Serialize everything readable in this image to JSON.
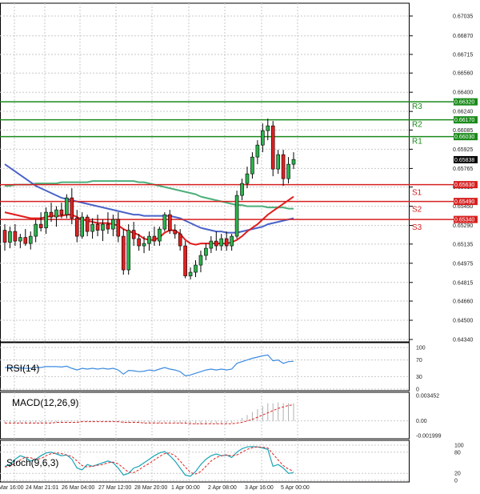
{
  "chart_data": {
    "type": "candlestick",
    "symbol_note": "",
    "x_labels": [
      "Mar 16:00",
      "24 Mar 21:01",
      "26 Mar 04:00",
      "27 Mar 12:00",
      "28 Mar 20:00",
      "1 Apr 00:00",
      "2 Apr 08:00",
      "3 Apr 16:00",
      "5 Apr 00:00"
    ],
    "price_axis": {
      "min": 0.6428,
      "max": 0.671,
      "ticks": [
        "0.67035",
        "0.66870",
        "0.66715",
        "0.66560",
        "0.66400",
        "0.66240",
        "0.66085",
        "0.65925",
        "0.65765",
        "0.65610",
        "0.65450",
        "0.65290",
        "0.65135",
        "0.64975",
        "0.64815",
        "0.64660",
        "0.64500",
        "0.64340"
      ]
    },
    "current_price": "0.65838",
    "levels": [
      {
        "name": "R3",
        "value": 0.6632,
        "label": "0.66320",
        "color": "#1a8a1a"
      },
      {
        "name": "R2",
        "value": 0.6617,
        "label": "0.66170",
        "color": "#1a8a1a"
      },
      {
        "name": "R1",
        "value": 0.6603,
        "label": "0.66030",
        "color": "#1a8a1a"
      },
      {
        "name": "S1",
        "value": 0.6563,
        "label": "0.65630",
        "color": "#d62020"
      },
      {
        "name": "S2",
        "value": 0.6549,
        "label": "0.65490",
        "color": "#d62020"
      },
      {
        "name": "S3",
        "value": 0.6534,
        "label": "0.65340",
        "color": "#d62020"
      }
    ],
    "candles": [
      [
        0.6525,
        0.653,
        0.6508,
        0.6515
      ],
      [
        0.6515,
        0.6528,
        0.651,
        0.6524
      ],
      [
        0.6524,
        0.653,
        0.6512,
        0.6516
      ],
      [
        0.6516,
        0.6522,
        0.651,
        0.6519
      ],
      [
        0.6519,
        0.6526,
        0.6512,
        0.6514
      ],
      [
        0.6514,
        0.6524,
        0.6509,
        0.652
      ],
      [
        0.652,
        0.6534,
        0.6515,
        0.653
      ],
      [
        0.653,
        0.654,
        0.6524,
        0.6527
      ],
      [
        0.6527,
        0.6544,
        0.6522,
        0.654
      ],
      [
        0.654,
        0.6548,
        0.6532,
        0.6536
      ],
      [
        0.6536,
        0.6545,
        0.6528,
        0.6542
      ],
      [
        0.6542,
        0.6548,
        0.6535,
        0.6538
      ],
      [
        0.6538,
        0.6555,
        0.6535,
        0.6552
      ],
      [
        0.6552,
        0.656,
        0.653,
        0.6535
      ],
      [
        0.6535,
        0.6542,
        0.6515,
        0.652
      ],
      [
        0.652,
        0.654,
        0.6518,
        0.6536
      ],
      [
        0.6536,
        0.6538,
        0.652,
        0.6524
      ],
      [
        0.6524,
        0.6535,
        0.6518,
        0.653
      ],
      [
        0.653,
        0.6538,
        0.652,
        0.6525
      ],
      [
        0.6525,
        0.6534,
        0.6516,
        0.653
      ],
      [
        0.653,
        0.654,
        0.6522,
        0.6526
      ],
      [
        0.6526,
        0.6538,
        0.652,
        0.6534
      ],
      [
        0.6534,
        0.654,
        0.6515,
        0.652
      ],
      [
        0.652,
        0.6526,
        0.6488,
        0.6492
      ],
      [
        0.6492,
        0.653,
        0.6488,
        0.6525
      ],
      [
        0.6525,
        0.6532,
        0.6512,
        0.6518
      ],
      [
        0.6518,
        0.6522,
        0.6508,
        0.6512
      ],
      [
        0.6512,
        0.652,
        0.6506,
        0.6514
      ],
      [
        0.6514,
        0.6524,
        0.6508,
        0.652
      ],
      [
        0.652,
        0.6528,
        0.6512,
        0.6516
      ],
      [
        0.6516,
        0.6528,
        0.6512,
        0.6526
      ],
      [
        0.6526,
        0.654,
        0.6524,
        0.6538
      ],
      [
        0.6538,
        0.6542,
        0.6522,
        0.6525
      ],
      [
        0.6525,
        0.653,
        0.6518,
        0.6522
      ],
      [
        0.6522,
        0.6526,
        0.6508,
        0.6512
      ],
      [
        0.6512,
        0.6516,
        0.6485,
        0.6487
      ],
      [
        0.6487,
        0.6494,
        0.6484,
        0.649
      ],
      [
        0.649,
        0.65,
        0.6486,
        0.6496
      ],
      [
        0.6496,
        0.6508,
        0.649,
        0.6504
      ],
      [
        0.6504,
        0.6514,
        0.65,
        0.651
      ],
      [
        0.651,
        0.652,
        0.6506,
        0.6516
      ],
      [
        0.6516,
        0.6524,
        0.6508,
        0.6512
      ],
      [
        0.6512,
        0.6522,
        0.6508,
        0.6518
      ],
      [
        0.6518,
        0.6524,
        0.6508,
        0.6512
      ],
      [
        0.6512,
        0.6522,
        0.6508,
        0.652
      ],
      [
        0.652,
        0.6558,
        0.6518,
        0.6554
      ],
      [
        0.6554,
        0.6568,
        0.655,
        0.6564
      ],
      [
        0.6564,
        0.6578,
        0.656,
        0.6572
      ],
      [
        0.6572,
        0.659,
        0.6568,
        0.6586
      ],
      [
        0.6586,
        0.66,
        0.658,
        0.6596
      ],
      [
        0.6596,
        0.6614,
        0.659,
        0.6608
      ],
      [
        0.6608,
        0.6618,
        0.66,
        0.6612
      ],
      [
        0.6612,
        0.6616,
        0.657,
        0.6576
      ],
      [
        0.6576,
        0.6592,
        0.6572,
        0.6588
      ],
      [
        0.6588,
        0.6592,
        0.6562,
        0.6568
      ],
      [
        0.6568,
        0.6586,
        0.6564,
        0.658
      ],
      [
        0.658,
        0.659,
        0.6576,
        0.6584
      ]
    ],
    "ma_fast_red": [
      0.654,
      0.6539,
      0.6538,
      0.6537,
      0.6536,
      0.6535,
      0.6535,
      0.6535,
      0.6536,
      0.6537,
      0.6537,
      0.6537,
      0.6538,
      0.6538,
      0.6536,
      0.6534,
      0.6533,
      0.6532,
      0.6531,
      0.6531,
      0.6531,
      0.653,
      0.6529,
      0.6526,
      0.6524,
      0.6523,
      0.6521,
      0.6518,
      0.6517,
      0.6517,
      0.6519,
      0.6523,
      0.6525,
      0.6525,
      0.6522,
      0.6517,
      0.6514,
      0.6513,
      0.6514,
      0.6514,
      0.6514,
      0.6514,
      0.6514,
      0.6514,
      0.6515,
      0.6517,
      0.652,
      0.6524,
      0.6527,
      0.653,
      0.6534,
      0.6538,
      0.6541,
      0.6544,
      0.6547,
      0.655,
      0.6553
    ],
    "ma_mid_blue": [
      0.658,
      0.6577,
      0.6574,
      0.6571,
      0.6568,
      0.6565,
      0.6562,
      0.656,
      0.6558,
      0.6556,
      0.6554,
      0.6552,
      0.6551,
      0.655,
      0.6549,
      0.6548,
      0.6547,
      0.6546,
      0.6545,
      0.6544,
      0.6543,
      0.6542,
      0.6541,
      0.654,
      0.6539,
      0.6538,
      0.6538,
      0.6537,
      0.6537,
      0.6537,
      0.6537,
      0.6537,
      0.6537,
      0.6536,
      0.6535,
      0.6533,
      0.6531,
      0.6529,
      0.6527,
      0.6526,
      0.6525,
      0.6524,
      0.6524,
      0.6523,
      0.6523,
      0.6523,
      0.6524,
      0.6525,
      0.6526,
      0.6527,
      0.6528,
      0.653,
      0.6531,
      0.6532,
      0.6533,
      0.6534,
      0.6535
    ],
    "ma_slow_green": [
      0.6562,
      0.6562,
      0.6563,
      0.6563,
      0.6563,
      0.6563,
      0.6564,
      0.6564,
      0.6564,
      0.6564,
      0.6564,
      0.6565,
      0.6565,
      0.6565,
      0.6565,
      0.6565,
      0.6565,
      0.6566,
      0.6566,
      0.6566,
      0.6566,
      0.6566,
      0.6566,
      0.6566,
      0.6566,
      0.6566,
      0.6565,
      0.6565,
      0.6564,
      0.6563,
      0.6562,
      0.6561,
      0.656,
      0.6559,
      0.6558,
      0.6557,
      0.6556,
      0.6555,
      0.6553,
      0.6552,
      0.6551,
      0.655,
      0.6549,
      0.6548,
      0.6547,
      0.6546,
      0.6546,
      0.6545,
      0.6545,
      0.6545,
      0.6545,
      0.6544,
      0.6544,
      0.6544,
      0.6544,
      0.6543,
      0.6543
    ],
    "rsi": {
      "label": "RSI(14)",
      "ticks": [
        "100",
        "70",
        "30",
        "0"
      ],
      "values": [
        52,
        52,
        51,
        51,
        50,
        50,
        52,
        52,
        54,
        54,
        54,
        53,
        55,
        50,
        46,
        50,
        48,
        50,
        48,
        50,
        48,
        50,
        46,
        36,
        45,
        44,
        42,
        43,
        46,
        44,
        48,
        52,
        48,
        46,
        42,
        32,
        34,
        38,
        42,
        46,
        48,
        46,
        48,
        46,
        48,
        62,
        66,
        70,
        74,
        77,
        80,
        82,
        68,
        70,
        62,
        66,
        67
      ]
    },
    "macd": {
      "label": "MACD(12,26,9)",
      "ticks": [
        "0.003452",
        "0.00",
        "-0.001999"
      ],
      "histogram": [
        -0.0003,
        -0.0003,
        -0.0003,
        -0.0003,
        -0.0003,
        -0.0003,
        -0.0003,
        -0.0003,
        -0.0002,
        -0.0002,
        -0.0002,
        -0.0002,
        -0.0001,
        -0.0001,
        -0.0001,
        -0.0001,
        -0.0001,
        -0.0001,
        -0.0001,
        -0.0001,
        -0.0001,
        -0.0001,
        -0.0002,
        -0.0003,
        -0.0003,
        -0.0003,
        -0.0003,
        -0.0003,
        -0.0003,
        -0.0003,
        -0.0003,
        -0.0002,
        -0.0002,
        -0.0002,
        -0.0003,
        -0.0004,
        -0.0005,
        -0.0005,
        -0.0005,
        -0.0005,
        -0.0004,
        -0.0004,
        -0.0004,
        -0.0004,
        -0.0003,
        0.0,
        0.0004,
        0.0008,
        0.0012,
        0.0016,
        0.002,
        0.0024,
        0.0024,
        0.0025,
        0.0024,
        0.0024,
        0.0024
      ],
      "signal": [
        -0.0003,
        -0.0003,
        -0.0003,
        -0.0003,
        -0.0003,
        -0.0003,
        -0.0003,
        -0.0003,
        -0.0003,
        -0.0003,
        -0.0002,
        -0.0002,
        -0.0002,
        -0.0002,
        -0.0002,
        -0.0001,
        -0.0001,
        -0.0001,
        -0.0001,
        -0.0001,
        -0.0001,
        -0.0001,
        -0.0001,
        -0.0002,
        -0.0002,
        -0.0002,
        -0.0002,
        -0.0003,
        -0.0003,
        -0.0003,
        -0.0003,
        -0.0003,
        -0.0003,
        -0.0003,
        -0.0003,
        -0.0003,
        -0.0004,
        -0.0004,
        -0.0004,
        -0.0004,
        -0.0004,
        -0.0004,
        -0.0004,
        -0.0004,
        -0.0004,
        -0.0003,
        -0.0002,
        0.0,
        0.0002,
        0.0005,
        0.0008,
        0.0011,
        0.0014,
        0.0017,
        0.0019,
        0.0021,
        0.0022
      ]
    },
    "stoch": {
      "label": "Stoch(9,6,3)",
      "ticks": [
        "100",
        "80",
        "20",
        "0"
      ],
      "k": [
        40,
        45,
        60,
        70,
        65,
        55,
        60,
        70,
        78,
        80,
        75,
        70,
        72,
        60,
        35,
        30,
        45,
        40,
        45,
        50,
        55,
        50,
        35,
        15,
        20,
        35,
        40,
        50,
        60,
        70,
        78,
        82,
        70,
        55,
        35,
        15,
        12,
        25,
        45,
        60,
        70,
        75,
        70,
        72,
        65,
        80,
        90,
        95,
        96,
        95,
        92,
        88,
        40,
        45,
        35,
        20,
        22
      ],
      "d": [
        38,
        40,
        48,
        58,
        66,
        64,
        60,
        62,
        70,
        76,
        78,
        76,
        72,
        68,
        55,
        42,
        38,
        40,
        43,
        45,
        50,
        52,
        47,
        35,
        23,
        22,
        30,
        40,
        48,
        58,
        68,
        76,
        78,
        70,
        55,
        38,
        22,
        18,
        25,
        40,
        55,
        65,
        70,
        72,
        70,
        72,
        80,
        88,
        93,
        95,
        94,
        92,
        75,
        58,
        42,
        32,
        26
      ]
    }
  }
}
